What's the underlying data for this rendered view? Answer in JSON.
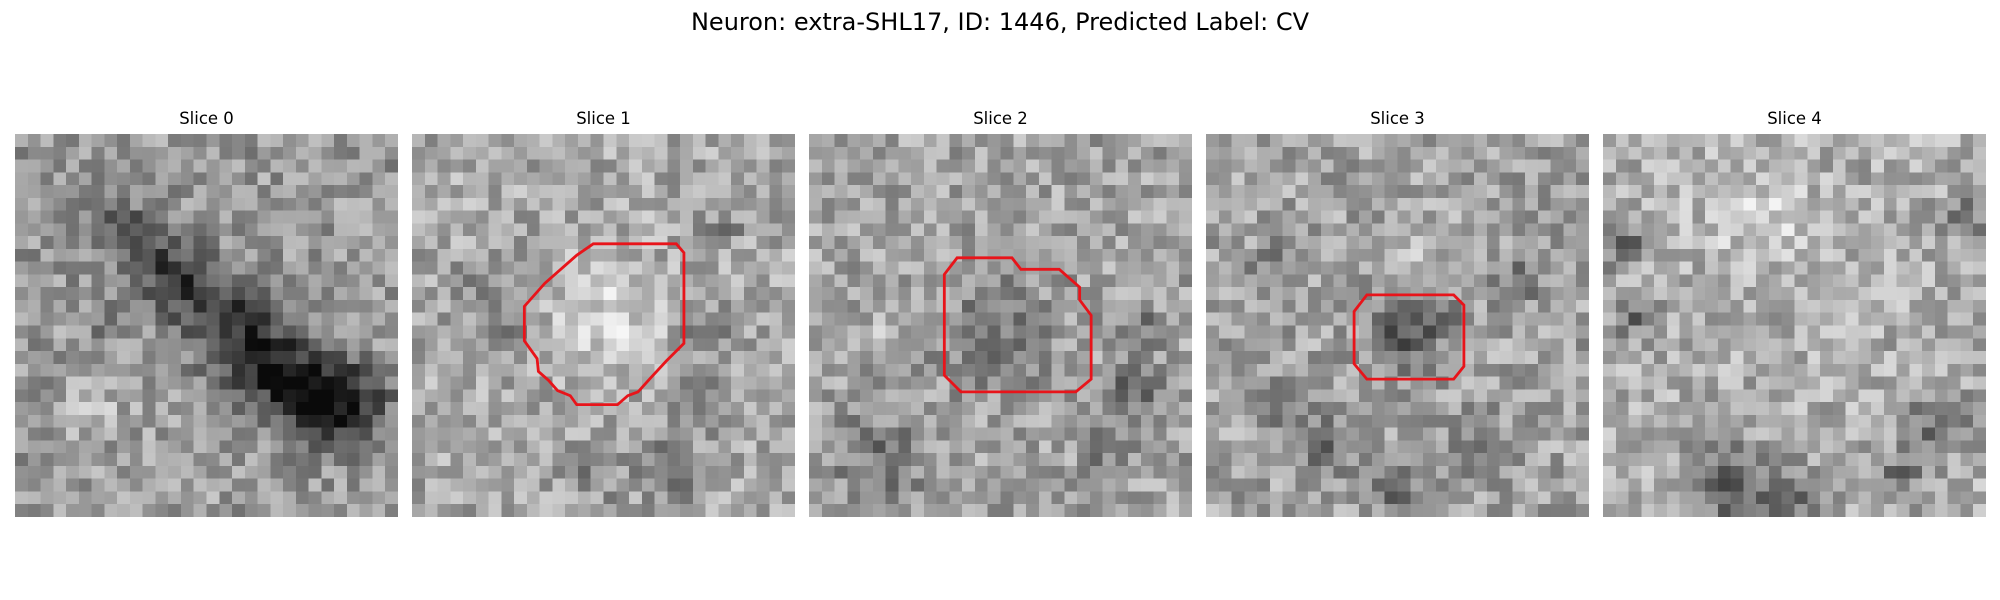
{
  "figure": {
    "title": "Neuron: extra-SHL17, ID: 1446, Predicted Label: CV"
  },
  "panels": [
    {
      "title": "Slice 0",
      "has_contour": false
    },
    {
      "title": "Slice 1",
      "has_contour": true
    },
    {
      "title": "Slice 2",
      "has_contour": true
    },
    {
      "title": "Slice 3",
      "has_contour": true
    },
    {
      "title": "Slice 4",
      "has_contour": false
    }
  ],
  "style": {
    "contour_color": "#e8141a",
    "colormap": "grayscale"
  }
}
